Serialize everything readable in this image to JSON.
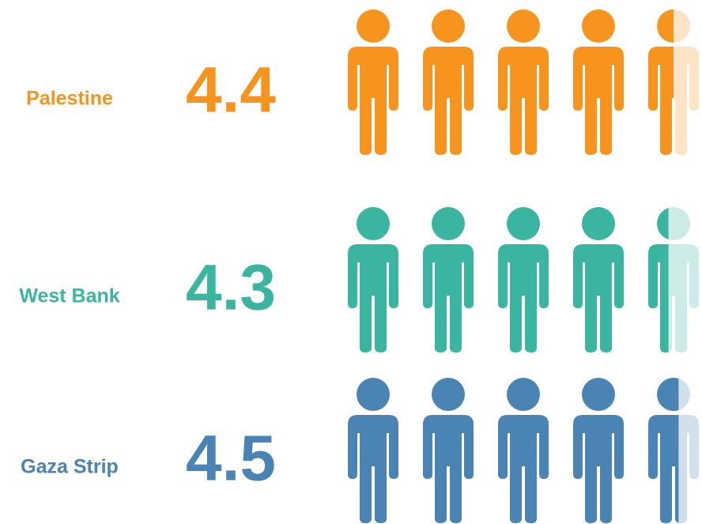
{
  "chart_data": {
    "type": "pictogram",
    "categories": [
      "Palestine",
      "West Bank",
      "Gaza Strip"
    ],
    "values": [
      4.4,
      4.3,
      4.5
    ],
    "colors": [
      "#f7941d",
      "#3ab5a0",
      "#4a84b5"
    ]
  }
}
